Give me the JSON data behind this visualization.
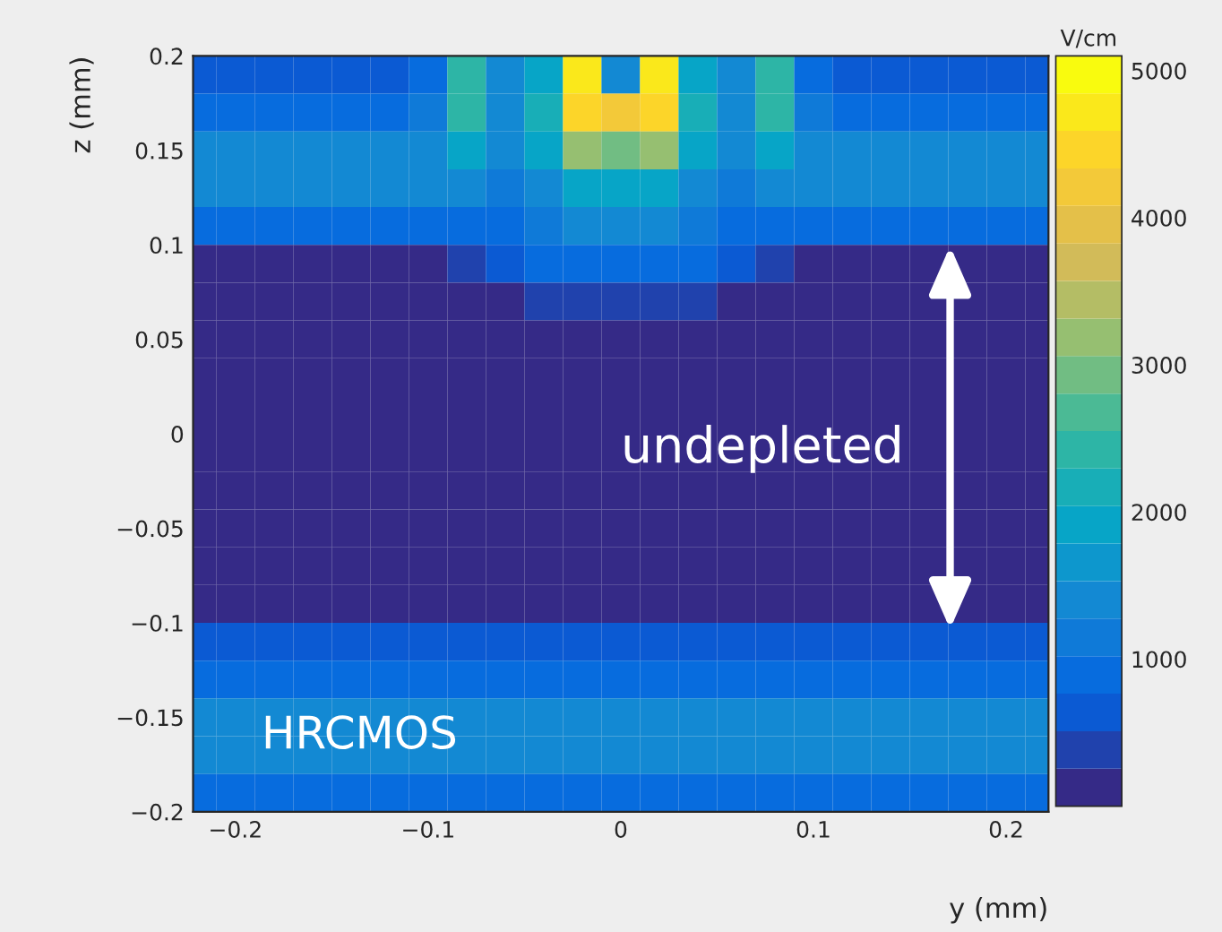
{
  "chart_data": {
    "type": "heatmap",
    "xlabel": "y (mm)",
    "ylabel": "z (mm)",
    "clabel": "V/cm",
    "x": [
      -0.22,
      -0.2,
      -0.18,
      -0.16,
      -0.14,
      -0.12,
      -0.1,
      -0.08,
      -0.06,
      -0.04,
      -0.02,
      0,
      0.02,
      0.04,
      0.06,
      0.08,
      0.1,
      0.12,
      0.14,
      0.16,
      0.18,
      0.2,
      0.22
    ],
    "y": [
      0.19,
      0.17,
      0.15,
      0.13,
      0.11,
      0.09,
      0.07,
      0.05,
      0.03,
      0.01,
      -0.01,
      -0.03,
      -0.05,
      -0.07,
      -0.09,
      -0.11,
      -0.13,
      -0.15,
      -0.17,
      -0.19
    ],
    "cells": [
      [
        600,
        600,
        600,
        600,
        600,
        600,
        800,
        2400,
        1300,
        1800,
        4800,
        1500,
        4800,
        1800,
        1300,
        2400,
        800,
        600,
        600,
        600,
        600,
        600,
        600
      ],
      [
        800,
        800,
        800,
        800,
        800,
        800,
        1100,
        2300,
        1500,
        2200,
        4500,
        4200,
        4500,
        2200,
        1500,
        2300,
        1100,
        800,
        800,
        800,
        800,
        800,
        800
      ],
      [
        1500,
        1500,
        1500,
        1500,
        1500,
        1500,
        1500,
        2000,
        1400,
        1900,
        3200,
        3000,
        3200,
        1900,
        1400,
        2000,
        1500,
        1500,
        1500,
        1500,
        1500,
        1500,
        1500
      ],
      [
        1500,
        1500,
        1500,
        1500,
        1500,
        1500,
        1400,
        1300,
        1100,
        1500,
        2000,
        2000,
        2000,
        1500,
        1100,
        1300,
        1400,
        1500,
        1500,
        1500,
        1500,
        1500,
        1500
      ],
      [
        900,
        900,
        900,
        900,
        900,
        900,
        900,
        900,
        900,
        1200,
        1400,
        1400,
        1400,
        1200,
        900,
        900,
        900,
        900,
        900,
        900,
        900,
        900,
        900
      ],
      [
        200,
        200,
        200,
        200,
        200,
        200,
        200,
        400,
        700,
        900,
        1000,
        1000,
        1000,
        900,
        700,
        400,
        200,
        200,
        200,
        200,
        200,
        200,
        200
      ],
      [
        200,
        200,
        200,
        200,
        200,
        200,
        200,
        200,
        200,
        300,
        300,
        300,
        300,
        300,
        200,
        200,
        200,
        200,
        200,
        200,
        200,
        200,
        200
      ],
      [
        150,
        150,
        150,
        150,
        150,
        150,
        150,
        150,
        150,
        150,
        150,
        150,
        150,
        150,
        150,
        150,
        150,
        150,
        150,
        150,
        150,
        150,
        150
      ],
      [
        150,
        150,
        150,
        150,
        150,
        150,
        150,
        150,
        150,
        150,
        150,
        150,
        150,
        150,
        150,
        150,
        150,
        150,
        150,
        150,
        150,
        150,
        150
      ],
      [
        150,
        150,
        150,
        150,
        150,
        150,
        150,
        150,
        150,
        150,
        150,
        150,
        150,
        150,
        150,
        150,
        150,
        150,
        150,
        150,
        150,
        150,
        150
      ],
      [
        150,
        150,
        150,
        150,
        150,
        150,
        150,
        150,
        150,
        150,
        150,
        150,
        150,
        150,
        150,
        150,
        150,
        150,
        150,
        150,
        150,
        150,
        150
      ],
      [
        150,
        150,
        150,
        150,
        150,
        150,
        150,
        150,
        150,
        150,
        150,
        150,
        150,
        150,
        150,
        150,
        150,
        150,
        150,
        150,
        150,
        150,
        150
      ],
      [
        150,
        150,
        150,
        150,
        150,
        150,
        150,
        150,
        150,
        150,
        150,
        150,
        150,
        150,
        150,
        150,
        150,
        150,
        150,
        150,
        150,
        150,
        150
      ],
      [
        150,
        150,
        150,
        150,
        150,
        150,
        150,
        150,
        150,
        150,
        150,
        150,
        150,
        150,
        150,
        150,
        150,
        150,
        150,
        150,
        150,
        150,
        150
      ],
      [
        150,
        150,
        150,
        150,
        150,
        150,
        150,
        150,
        150,
        150,
        150,
        150,
        150,
        150,
        150,
        150,
        150,
        150,
        150,
        150,
        150,
        150,
        150
      ],
      [
        600,
        600,
        600,
        600,
        600,
        600,
        600,
        600,
        600,
        600,
        600,
        600,
        600,
        600,
        600,
        600,
        600,
        600,
        600,
        600,
        600,
        600,
        600
      ],
      [
        900,
        900,
        900,
        900,
        900,
        900,
        900,
        900,
        900,
        900,
        900,
        900,
        900,
        900,
        900,
        900,
        900,
        900,
        900,
        900,
        900,
        900,
        900
      ],
      [
        1300,
        1300,
        1300,
        1300,
        1300,
        1300,
        1300,
        1300,
        1300,
        1300,
        1300,
        1300,
        1300,
        1300,
        1300,
        1300,
        1300,
        1300,
        1300,
        1300,
        1300,
        1300,
        1300
      ],
      [
        1500,
        1500,
        1500,
        1500,
        1500,
        1500,
        1500,
        1500,
        1500,
        1500,
        1500,
        1500,
        1500,
        1500,
        1500,
        1500,
        1500,
        1500,
        1500,
        1500,
        1500,
        1500,
        1500
      ],
      [
        800,
        800,
        800,
        800,
        800,
        800,
        800,
        800,
        800,
        800,
        800,
        800,
        800,
        800,
        800,
        800,
        800,
        800,
        800,
        800,
        800,
        800,
        800
      ]
    ],
    "xlim": [
      -0.222,
      0.222
    ],
    "ylim": [
      -0.2,
      0.2
    ],
    "xticks": [
      {
        "value": -0.2,
        "label": "−0.2"
      },
      {
        "value": -0.1,
        "label": "−0.1"
      },
      0,
      0.1,
      0.2
    ],
    "yticks": [
      {
        "value": -0.2,
        "label": "−0.2"
      },
      {
        "value": -0.15,
        "label": "−0.15"
      },
      {
        "value": -0.1,
        "label": "−0.1"
      },
      {
        "value": -0.05,
        "label": "−0.05"
      },
      0,
      0.05,
      0.1,
      0.15,
      0.2
    ],
    "clim": [
      0,
      5100
    ],
    "cticks": [
      1000,
      2000,
      3000,
      4000,
      5000
    ],
    "annotations": [
      "undepleted",
      "HRCMOS"
    ]
  }
}
